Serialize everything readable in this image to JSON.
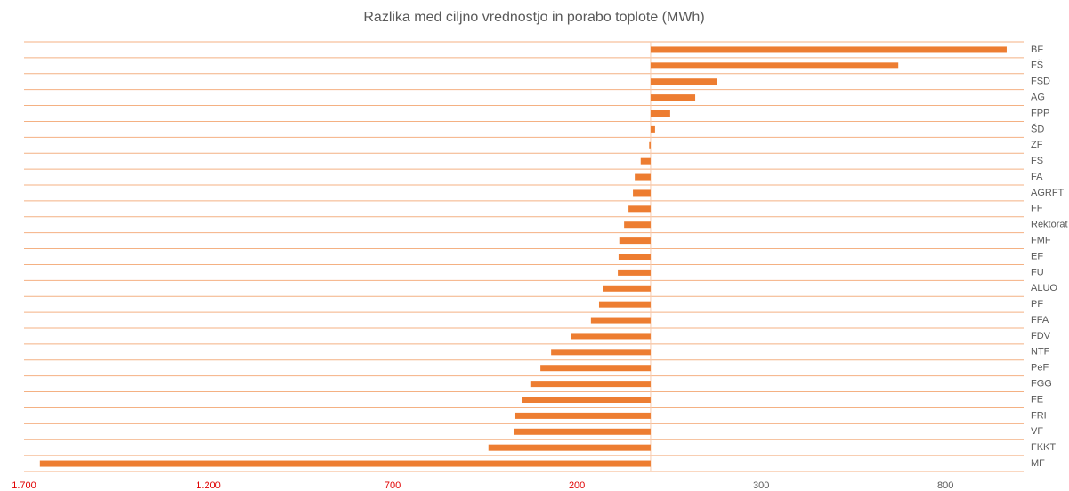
{
  "chart_data": {
    "type": "bar",
    "orientation": "horizontal",
    "title": "Razlika med ciljno vrednostjo in porabo toplote (MWh)",
    "categories": [
      "BF",
      "FŠ",
      "FSD",
      "AG",
      "FPP",
      "ŠD",
      "ZF",
      "FS",
      "FA",
      "AGRFT",
      "FF",
      "Rektorat",
      "FMF",
      "EF",
      "FU",
      "ALUO",
      "PF",
      "FFA",
      "FDV",
      "NTF",
      "PeF",
      "FGG",
      "FE",
      "FRI",
      "VF",
      "FKKT",
      "MF"
    ],
    "values": [
      966,
      672,
      181,
      121,
      53,
      12,
      -4,
      -27,
      -43,
      -48,
      -60,
      -72,
      -85,
      -87,
      -89,
      -128,
      -140,
      -162,
      -215,
      -270,
      -299,
      -324,
      -350,
      -367,
      -370,
      -440,
      -1657
    ],
    "color": "#ed7d31",
    "xlim": [
      -1700,
      1012
    ],
    "xticks": [
      {
        "value": -1700,
        "label": "1.700"
      },
      {
        "value": -1200,
        "label": "1.200"
      },
      {
        "value": -700,
        "label": "700"
      },
      {
        "value": -200,
        "label": "200"
      },
      300,
      800
    ],
    "negative_tick_color": "#e00000",
    "category_grid_color": "#f4b183"
  }
}
